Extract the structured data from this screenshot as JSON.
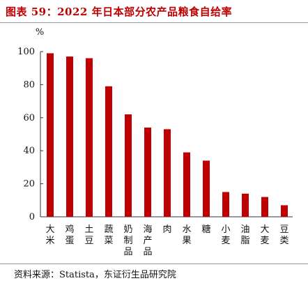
{
  "title": "图表 59：2022 年日本部分农产品粮食自给率",
  "source": "资料来源：Statista，东证衍生品研究院",
  "colors": {
    "title": "#c00000",
    "bar": "#c00000",
    "axis": "#333333",
    "text": "#111111",
    "rule": "#9a9a9a"
  },
  "chart_data": {
    "type": "bar",
    "unit_label": "%",
    "categories": [
      "大米",
      "鸡蛋",
      "土豆",
      "蔬菜",
      "奶制品",
      "海产品",
      "肉",
      "水果",
      "糖",
      "小麦",
      "油脂",
      "大麦",
      "豆类"
    ],
    "values": [
      99,
      97,
      96,
      79,
      62,
      54,
      53,
      39,
      34,
      15,
      14,
      12,
      7
    ],
    "ylim": [
      0,
      100
    ],
    "yticks": [
      0,
      20,
      40,
      60,
      80,
      100
    ],
    "grid": false,
    "legend": "none"
  }
}
